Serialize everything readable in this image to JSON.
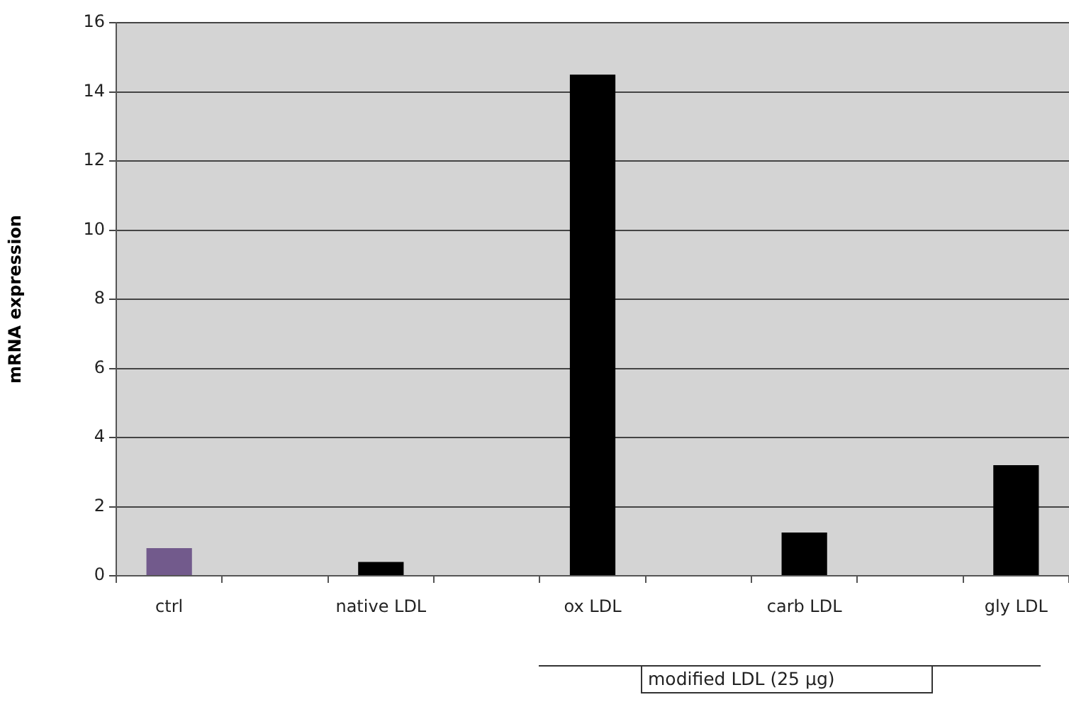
{
  "chart_data": {
    "type": "bar",
    "ylabel": "mRNA expression",
    "categories": [
      "ctrl",
      null,
      "native LDL",
      null,
      "ox LDL",
      null,
      "carb LDL",
      null,
      "gly LDL"
    ],
    "values": [
      0.8,
      null,
      0.4,
      null,
      14.5,
      null,
      1.25,
      null,
      3.2
    ],
    "colors": [
      "#725a8c",
      "#000000",
      "#000000",
      "#000000",
      "#000000",
      "#000000",
      "#000000",
      "#000000",
      "#000000"
    ],
    "ylim": [
      0,
      16
    ],
    "yticks": [
      0,
      2,
      4,
      6,
      8,
      10,
      12,
      14,
      16
    ],
    "grid": "y",
    "annotations": [
      "modified LDL (25 µg)"
    ]
  }
}
